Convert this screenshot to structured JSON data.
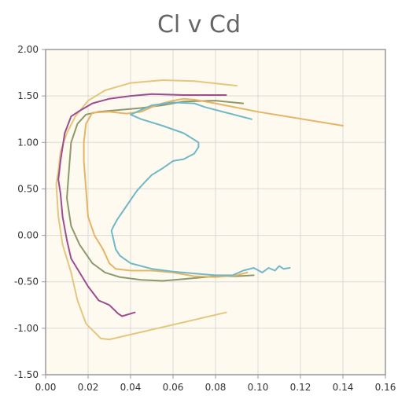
{
  "chart_data": {
    "type": "line",
    "title": "Cl v Cd",
    "xlabel": "",
    "ylabel": "",
    "xlim": [
      0.0,
      0.16
    ],
    "ylim": [
      -1.5,
      2.0
    ],
    "grid": true,
    "legend": "none",
    "x_ticks": [
      "0.00",
      "0.02",
      "0.04",
      "0.06",
      "0.08",
      "0.10",
      "0.12",
      "0.14",
      "0.16"
    ],
    "y_ticks": [
      "2.00",
      "1.50",
      "1.00",
      "0.50",
      "0.00",
      "-0.50",
      "-1.00",
      "-1.50"
    ],
    "colors": {
      "plot_bg": "#fffaef",
      "grid": "#d9d9d9",
      "frame": "#999999"
    },
    "series": [
      {
        "color": "#e3c77e",
        "points": [
          [
            0.085,
            -0.83
          ],
          [
            0.03,
            -1.12
          ],
          [
            0.026,
            -1.11
          ],
          [
            0.019,
            -0.95
          ],
          [
            0.015,
            -0.7
          ],
          [
            0.012,
            -0.4
          ],
          [
            0.008,
            -0.1
          ],
          [
            0.006,
            0.2
          ],
          [
            0.005,
            0.55
          ],
          [
            0.006,
            0.7
          ],
          [
            0.007,
            0.9
          ],
          [
            0.01,
            1.1
          ],
          [
            0.014,
            1.28
          ],
          [
            0.02,
            1.45
          ],
          [
            0.028,
            1.56
          ],
          [
            0.04,
            1.64
          ],
          [
            0.055,
            1.67
          ],
          [
            0.07,
            1.66
          ],
          [
            0.09,
            1.61
          ]
        ]
      },
      {
        "color": "#9b4d8f",
        "points": [
          [
            0.042,
            -0.83
          ],
          [
            0.036,
            -0.87
          ],
          [
            0.034,
            -0.84
          ],
          [
            0.03,
            -0.75
          ],
          [
            0.025,
            -0.7
          ],
          [
            0.02,
            -0.55
          ],
          [
            0.016,
            -0.4
          ],
          [
            0.012,
            -0.25
          ],
          [
            0.01,
            -0.05
          ],
          [
            0.008,
            0.2
          ],
          [
            0.007,
            0.45
          ],
          [
            0.006,
            0.6
          ],
          [
            0.007,
            0.8
          ],
          [
            0.009,
            1.1
          ],
          [
            0.012,
            1.28
          ],
          [
            0.016,
            1.34
          ],
          [
            0.022,
            1.42
          ],
          [
            0.03,
            1.47
          ],
          [
            0.04,
            1.5
          ],
          [
            0.05,
            1.52
          ],
          [
            0.065,
            1.51
          ],
          [
            0.085,
            1.51
          ]
        ]
      },
      {
        "color": "#8c9a6b",
        "points": [
          [
            0.098,
            -0.43
          ],
          [
            0.09,
            -0.44
          ],
          [
            0.08,
            -0.44
          ],
          [
            0.065,
            -0.47
          ],
          [
            0.055,
            -0.49
          ],
          [
            0.045,
            -0.48
          ],
          [
            0.035,
            -0.45
          ],
          [
            0.028,
            -0.4
          ],
          [
            0.022,
            -0.3
          ],
          [
            0.016,
            -0.1
          ],
          [
            0.012,
            0.1
          ],
          [
            0.01,
            0.4
          ],
          [
            0.011,
            0.7
          ],
          [
            0.012,
            1.0
          ],
          [
            0.015,
            1.2
          ],
          [
            0.019,
            1.3
          ],
          [
            0.025,
            1.33
          ],
          [
            0.035,
            1.35
          ],
          [
            0.045,
            1.37
          ],
          [
            0.055,
            1.4
          ],
          [
            0.065,
            1.44
          ],
          [
            0.08,
            1.45
          ],
          [
            0.093,
            1.42
          ]
        ]
      },
      {
        "color": "#e6b465",
        "points": [
          [
            0.095,
            -0.4
          ],
          [
            0.09,
            -0.43
          ],
          [
            0.08,
            -0.45
          ],
          [
            0.07,
            -0.44
          ],
          [
            0.06,
            -0.4
          ],
          [
            0.05,
            -0.38
          ],
          [
            0.04,
            -0.38
          ],
          [
            0.033,
            -0.36
          ],
          [
            0.03,
            -0.3
          ],
          [
            0.027,
            -0.15
          ],
          [
            0.023,
            0.0
          ],
          [
            0.02,
            0.2
          ],
          [
            0.019,
            0.5
          ],
          [
            0.018,
            0.8
          ],
          [
            0.018,
            1.0
          ],
          [
            0.019,
            1.2
          ],
          [
            0.022,
            1.32
          ],
          [
            0.03,
            1.33
          ],
          [
            0.038,
            1.31
          ],
          [
            0.045,
            1.33
          ],
          [
            0.05,
            1.38
          ],
          [
            0.055,
            1.42
          ],
          [
            0.06,
            1.45
          ],
          [
            0.065,
            1.47
          ],
          [
            0.07,
            1.46
          ],
          [
            0.08,
            1.42
          ],
          [
            0.1,
            1.33
          ],
          [
            0.14,
            1.18
          ]
        ]
      },
      {
        "color": "#6fb8c8",
        "points": [
          [
            0.097,
            1.25
          ],
          [
            0.085,
            1.32
          ],
          [
            0.075,
            1.38
          ],
          [
            0.07,
            1.42
          ],
          [
            0.06,
            1.43
          ],
          [
            0.05,
            1.4
          ],
          [
            0.045,
            1.35
          ],
          [
            0.04,
            1.3
          ],
          [
            0.045,
            1.25
          ],
          [
            0.055,
            1.18
          ],
          [
            0.065,
            1.1
          ],
          [
            0.072,
            1.0
          ],
          [
            0.072,
            0.95
          ],
          [
            0.07,
            0.88
          ],
          [
            0.065,
            0.82
          ],
          [
            0.06,
            0.8
          ],
          [
            0.055,
            0.72
          ],
          [
            0.05,
            0.65
          ],
          [
            0.047,
            0.58
          ],
          [
            0.043,
            0.48
          ],
          [
            0.04,
            0.38
          ],
          [
            0.037,
            0.28
          ],
          [
            0.034,
            0.18
          ],
          [
            0.032,
            0.1
          ],
          [
            0.031,
            0.05
          ],
          [
            0.032,
            -0.05
          ],
          [
            0.033,
            -0.15
          ],
          [
            0.035,
            -0.22
          ],
          [
            0.04,
            -0.3
          ],
          [
            0.05,
            -0.36
          ],
          [
            0.06,
            -0.39
          ],
          [
            0.07,
            -0.41
          ],
          [
            0.08,
            -0.43
          ],
          [
            0.088,
            -0.43
          ],
          [
            0.093,
            -0.38
          ],
          [
            0.098,
            -0.35
          ],
          [
            0.102,
            -0.4
          ],
          [
            0.105,
            -0.35
          ],
          [
            0.108,
            -0.38
          ],
          [
            0.11,
            -0.33
          ],
          [
            0.112,
            -0.36
          ],
          [
            0.115,
            -0.35
          ]
        ]
      }
    ]
  }
}
